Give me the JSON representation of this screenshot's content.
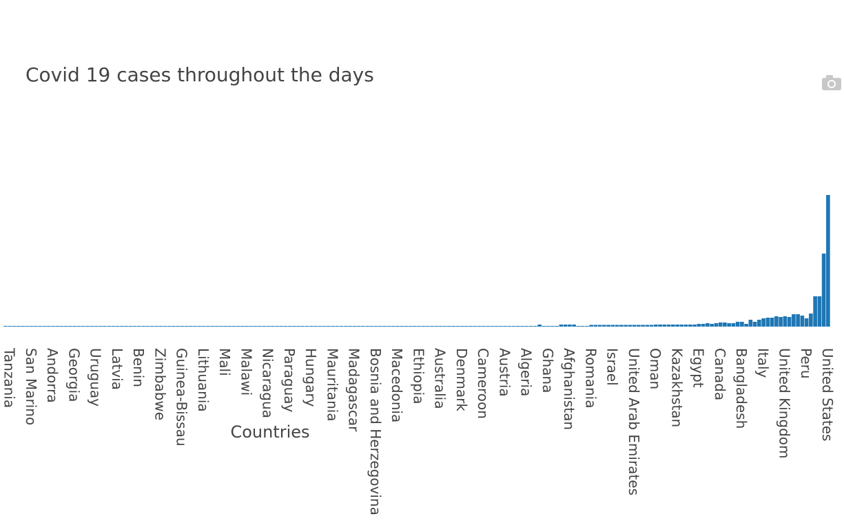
{
  "chart_data": {
    "type": "bar",
    "title": "Covid 19 cases throughout the days",
    "x_label": "Countries",
    "color": "#1f77b4",
    "ylim": [
      0,
      200
    ],
    "categories": [
      "Tanzania",
      null,
      null,
      null,
      null,
      "San Marino",
      null,
      null,
      null,
      null,
      "Andorra",
      null,
      null,
      null,
      null,
      "Georgia",
      null,
      null,
      null,
      null,
      "Uruguay",
      null,
      null,
      null,
      null,
      "Latvia",
      null,
      null,
      null,
      null,
      "Benin",
      null,
      null,
      null,
      null,
      "Zimbabwe",
      null,
      null,
      null,
      null,
      "Guinea-Bissau",
      null,
      null,
      null,
      null,
      "Lithuania",
      null,
      null,
      null,
      null,
      "Mali",
      null,
      null,
      null,
      null,
      "Malawi",
      null,
      null,
      null,
      null,
      "Nicaragua",
      null,
      null,
      null,
      null,
      "Paraguay",
      null,
      null,
      null,
      null,
      "Hungary",
      null,
      null,
      null,
      null,
      "Mauritania",
      null,
      null,
      null,
      null,
      "Madagascar",
      null,
      null,
      null,
      null,
      "Bosnia and Herzegovina",
      null,
      null,
      null,
      null,
      "Macedonia",
      null,
      null,
      null,
      null,
      "Ethiopia",
      null,
      null,
      null,
      null,
      "Australia",
      null,
      null,
      null,
      null,
      "Denmark",
      null,
      null,
      null,
      null,
      "Cameroon",
      null,
      null,
      null,
      null,
      "Austria",
      null,
      null,
      null,
      null,
      "Algeria",
      null,
      null,
      null,
      null,
      "Ghana",
      null,
      null,
      null,
      null,
      "Afghanistan",
      null,
      null,
      null,
      null,
      "Romania",
      null,
      null,
      null,
      null,
      "Israel",
      null,
      null,
      null,
      null,
      "United Arab Emirates",
      null,
      null,
      null,
      null,
      "Oman",
      null,
      null,
      null,
      null,
      "Kazakhstan",
      null,
      null,
      null,
      null,
      "Egypt",
      null,
      null,
      null,
      null,
      "Canada",
      null,
      null,
      null,
      null,
      "Bangladesh",
      null,
      null,
      null,
      null,
      "Italy",
      null,
      null,
      null,
      null,
      "United Kingdom",
      null,
      null,
      null,
      null,
      "Peru",
      null,
      null,
      null,
      null,
      "United States",
      null
    ],
    "values": [
      1,
      1,
      1,
      1,
      1,
      1,
      1,
      1,
      1,
      1,
      1,
      1,
      1,
      1,
      1,
      1,
      1,
      1,
      1,
      1,
      1,
      1,
      1,
      1,
      1,
      1,
      1,
      1,
      1,
      1,
      1,
      1,
      1,
      1,
      1,
      1,
      1,
      1,
      1,
      1,
      1,
      1,
      1,
      1,
      1,
      1,
      1,
      1,
      1,
      1,
      1,
      1,
      1,
      1,
      1,
      1,
      1,
      1,
      1,
      1,
      1,
      1,
      1,
      1,
      1,
      1,
      1,
      1,
      1,
      1,
      1,
      1,
      1,
      1,
      1,
      1,
      1,
      1,
      1,
      1,
      1,
      1,
      1,
      1,
      1,
      1,
      1,
      1,
      1,
      1,
      1,
      1,
      1,
      1,
      1,
      1,
      1,
      1,
      1,
      1,
      1,
      1,
      1,
      1,
      1,
      1,
      1,
      1,
      1,
      1,
      1,
      1,
      1,
      1,
      1,
      1,
      1,
      1,
      1,
      1,
      1,
      1,
      1,
      1,
      3,
      1,
      1,
      1,
      1,
      3,
      3,
      3,
      3,
      1,
      1,
      1,
      2.5,
      2.5,
      2.5,
      2.5,
      2.5,
      2.5,
      2.5,
      2.5,
      2.5,
      2.5,
      2.5,
      2.5,
      2.5,
      2.5,
      2.5,
      3,
      3,
      3,
      3,
      3,
      3,
      3,
      3,
      3,
      3,
      4,
      4,
      5,
      4,
      5,
      6,
      6,
      5,
      5,
      7,
      7,
      4,
      10,
      7,
      10,
      12,
      13,
      13,
      15,
      14,
      15,
      14,
      18,
      18,
      16,
      12,
      19,
      44,
      44,
      106,
      191
    ]
  }
}
